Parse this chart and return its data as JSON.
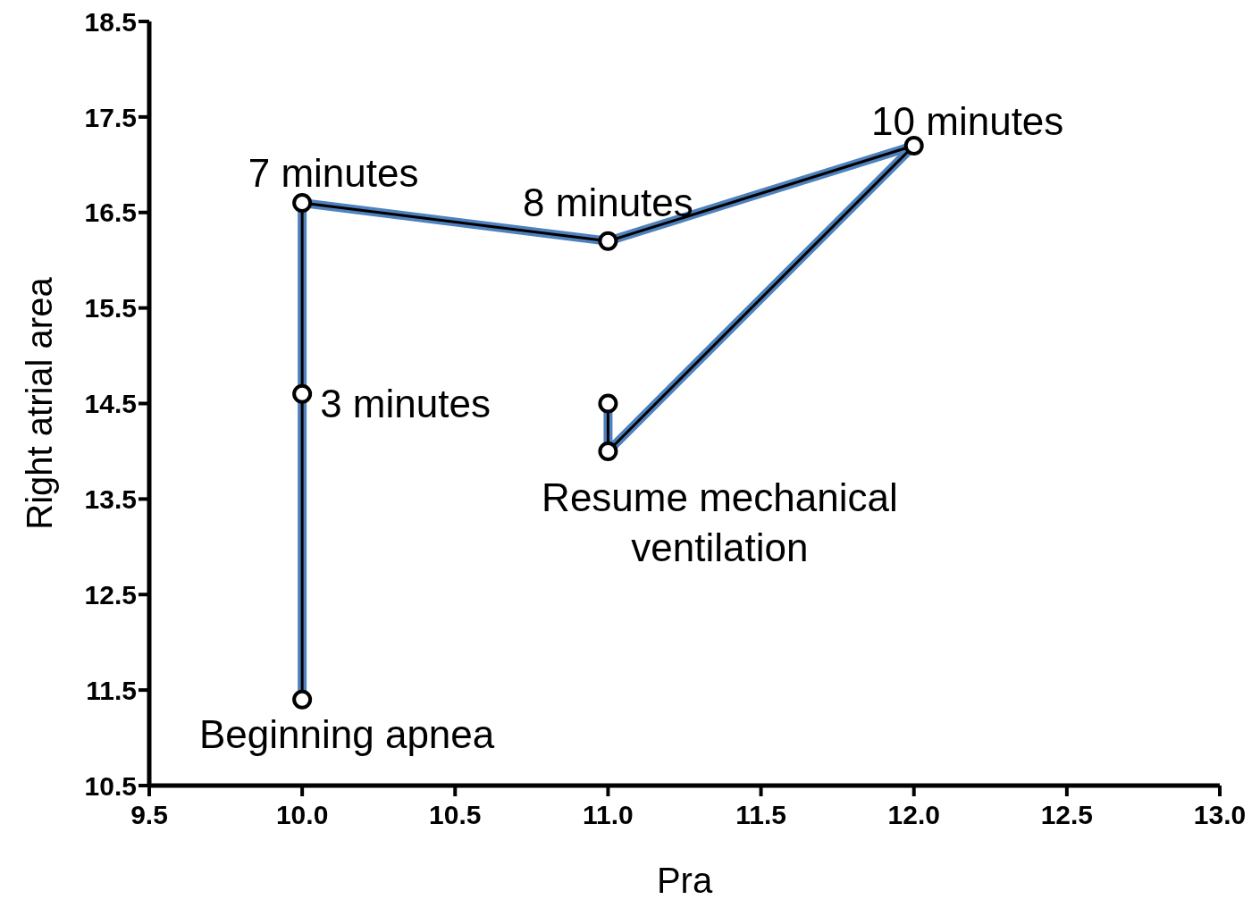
{
  "chart_data": {
    "type": "line",
    "xlabel": "Pra",
    "ylabel": "Right atrial area",
    "x": [
      10.0,
      10.0,
      10.0,
      11.0,
      12.0,
      11.0,
      11.0
    ],
    "series": [
      {
        "color": "#4f81bd",
        "marker": "none",
        "values": [
          11.4,
          14.6,
          16.6,
          16.2,
          17.2,
          14.0,
          14.5
        ]
      },
      {
        "color": "#000000",
        "marker": "circle",
        "values": [
          11.4,
          14.6,
          16.6,
          16.2,
          17.2,
          14.0,
          14.5
        ]
      }
    ],
    "xlim": [
      9.5,
      13.0
    ],
    "xticks": [
      {
        "value": 9.5,
        "label": "9.5"
      },
      {
        "value": 10,
        "label": "10.0"
      },
      {
        "value": 10.5,
        "label": "10.5"
      },
      {
        "value": 11,
        "label": "11.0"
      },
      {
        "value": 11.5,
        "label": "11.5"
      },
      {
        "value": 12,
        "label": "12.0"
      },
      {
        "value": 12.5,
        "label": "12.5"
      },
      {
        "value": 13,
        "label": "13.0"
      }
    ],
    "ylim": [
      10.5,
      18.5
    ],
    "yticks": [
      10.5,
      11.5,
      12.5,
      13.5,
      14.5,
      15.5,
      16.5,
      17.5,
      18.5
    ],
    "grid": false,
    "legend": false,
    "annotations": [
      {
        "text": "Beginning apnea",
        "x": 10.0,
        "y": 11.4
      },
      {
        "text": "3 minutes",
        "x": 10.0,
        "y": 14.6
      },
      {
        "text": "7 minutes",
        "x": 10.0,
        "y": 16.6
      },
      {
        "text": "8 minutes",
        "x": 11.0,
        "y": 16.2
      },
      {
        "text": "10 minutes",
        "x": 12.0,
        "y": 17.2
      },
      {
        "text": "Resume mechanical ventilation",
        "x": 11.0,
        "y": 14.0
      }
    ]
  }
}
